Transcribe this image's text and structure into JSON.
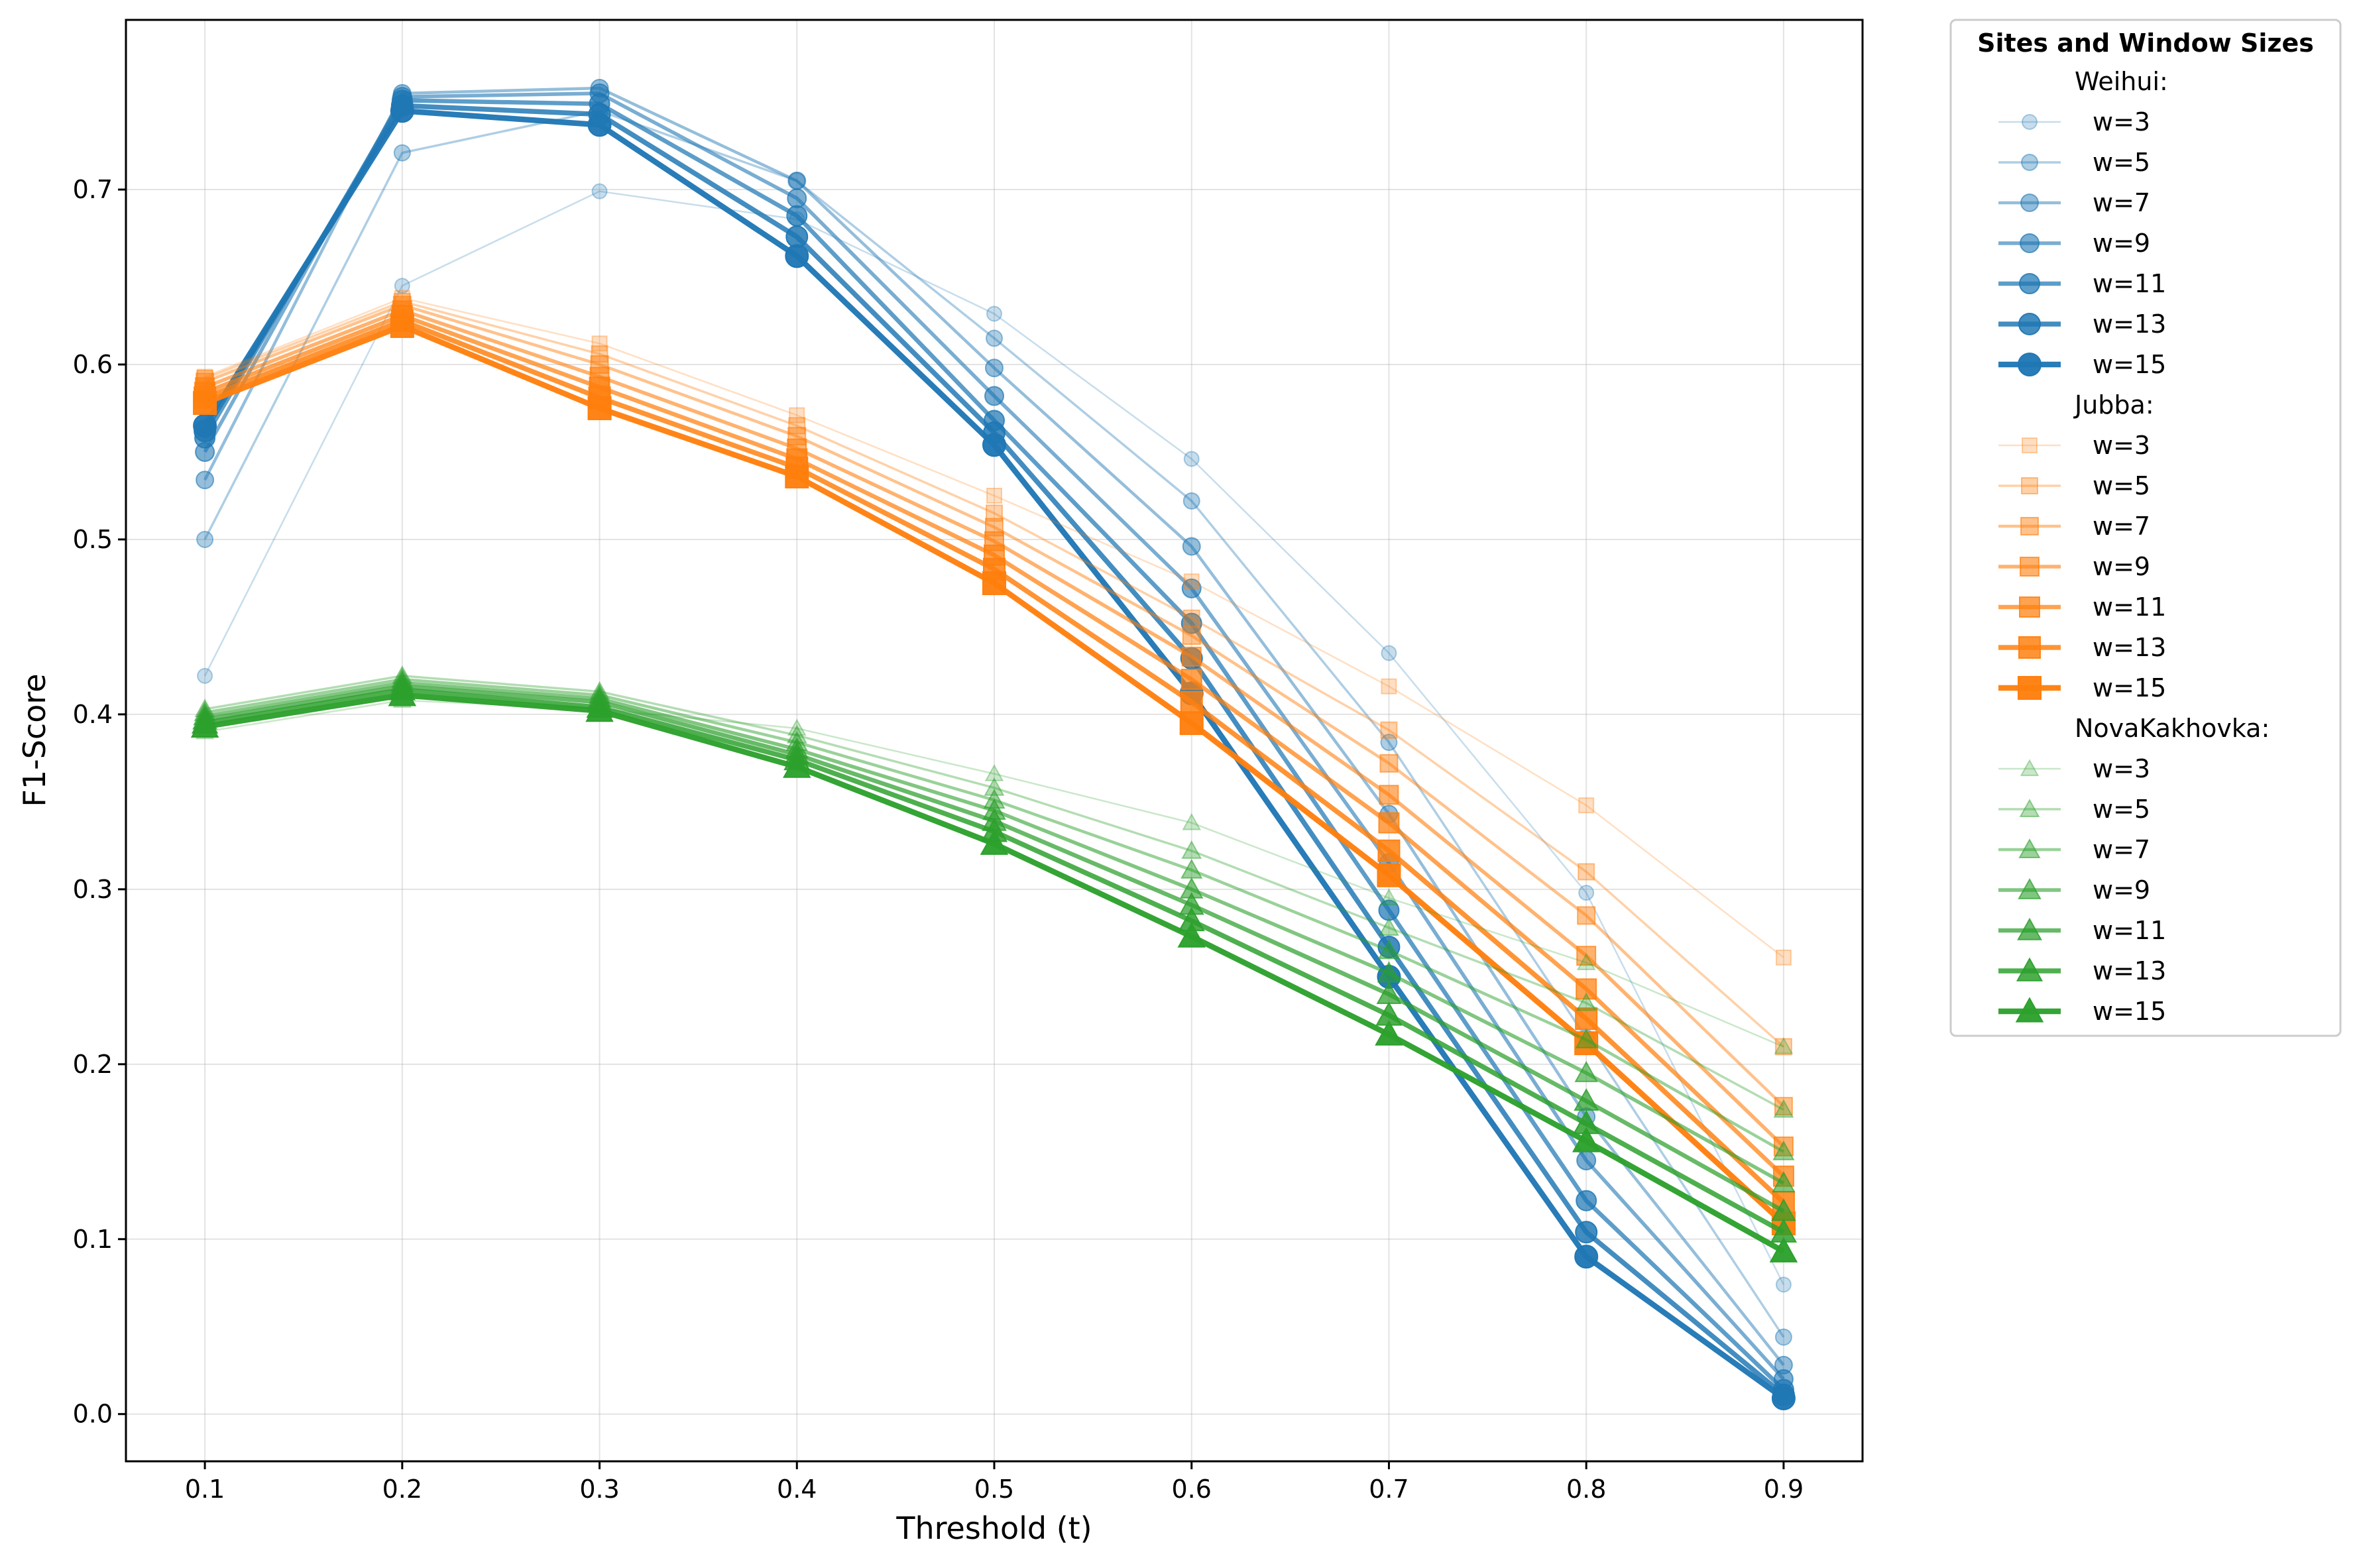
{
  "chart_data": {
    "type": "line",
    "title": "",
    "xlabel": "Threshold (t)",
    "ylabel": "F1-Score",
    "x": [
      0.1,
      0.2,
      0.3,
      0.4,
      0.5,
      0.6,
      0.7,
      0.8,
      0.9
    ],
    "xlim": [
      0.06,
      0.94
    ],
    "ylim": [
      -0.027,
      0.797
    ],
    "xticks": [
      "0.1",
      "0.2",
      "0.3",
      "0.4",
      "0.5",
      "0.6",
      "0.7",
      "0.8",
      "0.9"
    ],
    "yticks": [
      "0.0",
      "0.1",
      "0.2",
      "0.3",
      "0.4",
      "0.5",
      "0.6",
      "0.7"
    ],
    "ytick_values": [
      0.0,
      0.1,
      0.2,
      0.3,
      0.4,
      0.5,
      0.6,
      0.7
    ],
    "grid": true,
    "legend": {
      "title": "Sites and Window Sizes",
      "placement": "outside-right-top",
      "window_labels": [
        "w=3",
        "w=5",
        "w=7",
        "w=9",
        "w=11",
        "w=13",
        "w=15"
      ]
    },
    "groups": [
      {
        "site": "Weihui",
        "header": "Weihui:",
        "color": "#1f77b4",
        "marker": "circle",
        "series": [
          {
            "name": "w=3",
            "values": [
              0.422,
              0.645,
              0.699,
              0.683,
              0.629,
              0.546,
              0.435,
              0.298,
              0.074
            ]
          },
          {
            "name": "w=5",
            "values": [
              0.5,
              0.721,
              0.745,
              0.705,
              0.615,
              0.522,
              0.384,
              0.215,
              0.044
            ]
          },
          {
            "name": "w=7",
            "values": [
              0.534,
              0.755,
              0.758,
              0.705,
              0.598,
              0.496,
              0.343,
              0.17,
              0.028
            ]
          },
          {
            "name": "w=9",
            "values": [
              0.55,
              0.753,
              0.755,
              0.695,
              0.582,
              0.472,
              0.315,
              0.145,
              0.02
            ]
          },
          {
            "name": "w=11",
            "values": [
              0.558,
              0.751,
              0.749,
              0.685,
              0.568,
              0.452,
              0.288,
              0.122,
              0.014
            ]
          },
          {
            "name": "w=13",
            "values": [
              0.562,
              0.748,
              0.743,
              0.673,
              0.561,
              0.432,
              0.267,
              0.104,
              0.011
            ]
          },
          {
            "name": "w=15",
            "values": [
              0.565,
              0.745,
              0.737,
              0.662,
              0.554,
              0.412,
              0.25,
              0.09,
              0.009
            ]
          }
        ]
      },
      {
        "site": "Jubba",
        "header": "Jubba:",
        "color": "#ff7f0e",
        "marker": "square",
        "series": [
          {
            "name": "w=3",
            "values": [
              0.593,
              0.638,
              0.612,
              0.571,
              0.525,
              0.476,
              0.416,
              0.348,
              0.261
            ]
          },
          {
            "name": "w=5",
            "values": [
              0.592,
              0.636,
              0.606,
              0.565,
              0.515,
              0.455,
              0.391,
              0.31,
              0.21
            ]
          },
          {
            "name": "w=7",
            "values": [
              0.59,
              0.634,
              0.6,
              0.559,
              0.507,
              0.445,
              0.372,
              0.285,
              0.176
            ]
          },
          {
            "name": "w=9",
            "values": [
              0.587,
              0.631,
              0.593,
              0.552,
              0.499,
              0.433,
              0.354,
              0.262,
              0.153
            ]
          },
          {
            "name": "w=11",
            "values": [
              0.584,
              0.628,
              0.587,
              0.546,
              0.491,
              0.42,
              0.338,
              0.243,
              0.136
            ]
          },
          {
            "name": "w=13",
            "values": [
              0.581,
              0.625,
              0.581,
              0.541,
              0.483,
              0.407,
              0.322,
              0.226,
              0.121
            ]
          },
          {
            "name": "w=15",
            "values": [
              0.578,
              0.622,
              0.575,
              0.536,
              0.475,
              0.395,
              0.308,
              0.212,
              0.109
            ]
          }
        ]
      },
      {
        "site": "NovaKakhovka",
        "header": "NovaKakhovka:",
        "color": "#2ca02c",
        "marker": "triangle",
        "series": [
          {
            "name": "w=3",
            "values": [
              0.39,
              0.408,
              0.403,
              0.392,
              0.366,
              0.338,
              0.295,
              0.258,
              0.21
            ]
          },
          {
            "name": "w=5",
            "values": [
              0.403,
              0.422,
              0.413,
              0.388,
              0.358,
              0.322,
              0.278,
              0.235,
              0.174
            ]
          },
          {
            "name": "w=7",
            "values": [
              0.401,
              0.42,
              0.411,
              0.384,
              0.351,
              0.311,
              0.265,
              0.214,
              0.15
            ]
          },
          {
            "name": "w=9",
            "values": [
              0.399,
              0.418,
              0.409,
              0.38,
              0.345,
              0.3,
              0.252,
              0.195,
              0.132
            ]
          },
          {
            "name": "w=11",
            "values": [
              0.397,
              0.416,
              0.407,
              0.377,
              0.339,
              0.291,
              0.24,
              0.179,
              0.116
            ]
          },
          {
            "name": "w=13",
            "values": [
              0.395,
              0.414,
              0.404,
              0.374,
              0.333,
              0.282,
              0.228,
              0.166,
              0.104
            ]
          },
          {
            "name": "w=15",
            "values": [
              0.393,
              0.411,
              0.402,
              0.37,
              0.326,
              0.273,
              0.217,
              0.156,
              0.093
            ]
          }
        ]
      }
    ]
  }
}
